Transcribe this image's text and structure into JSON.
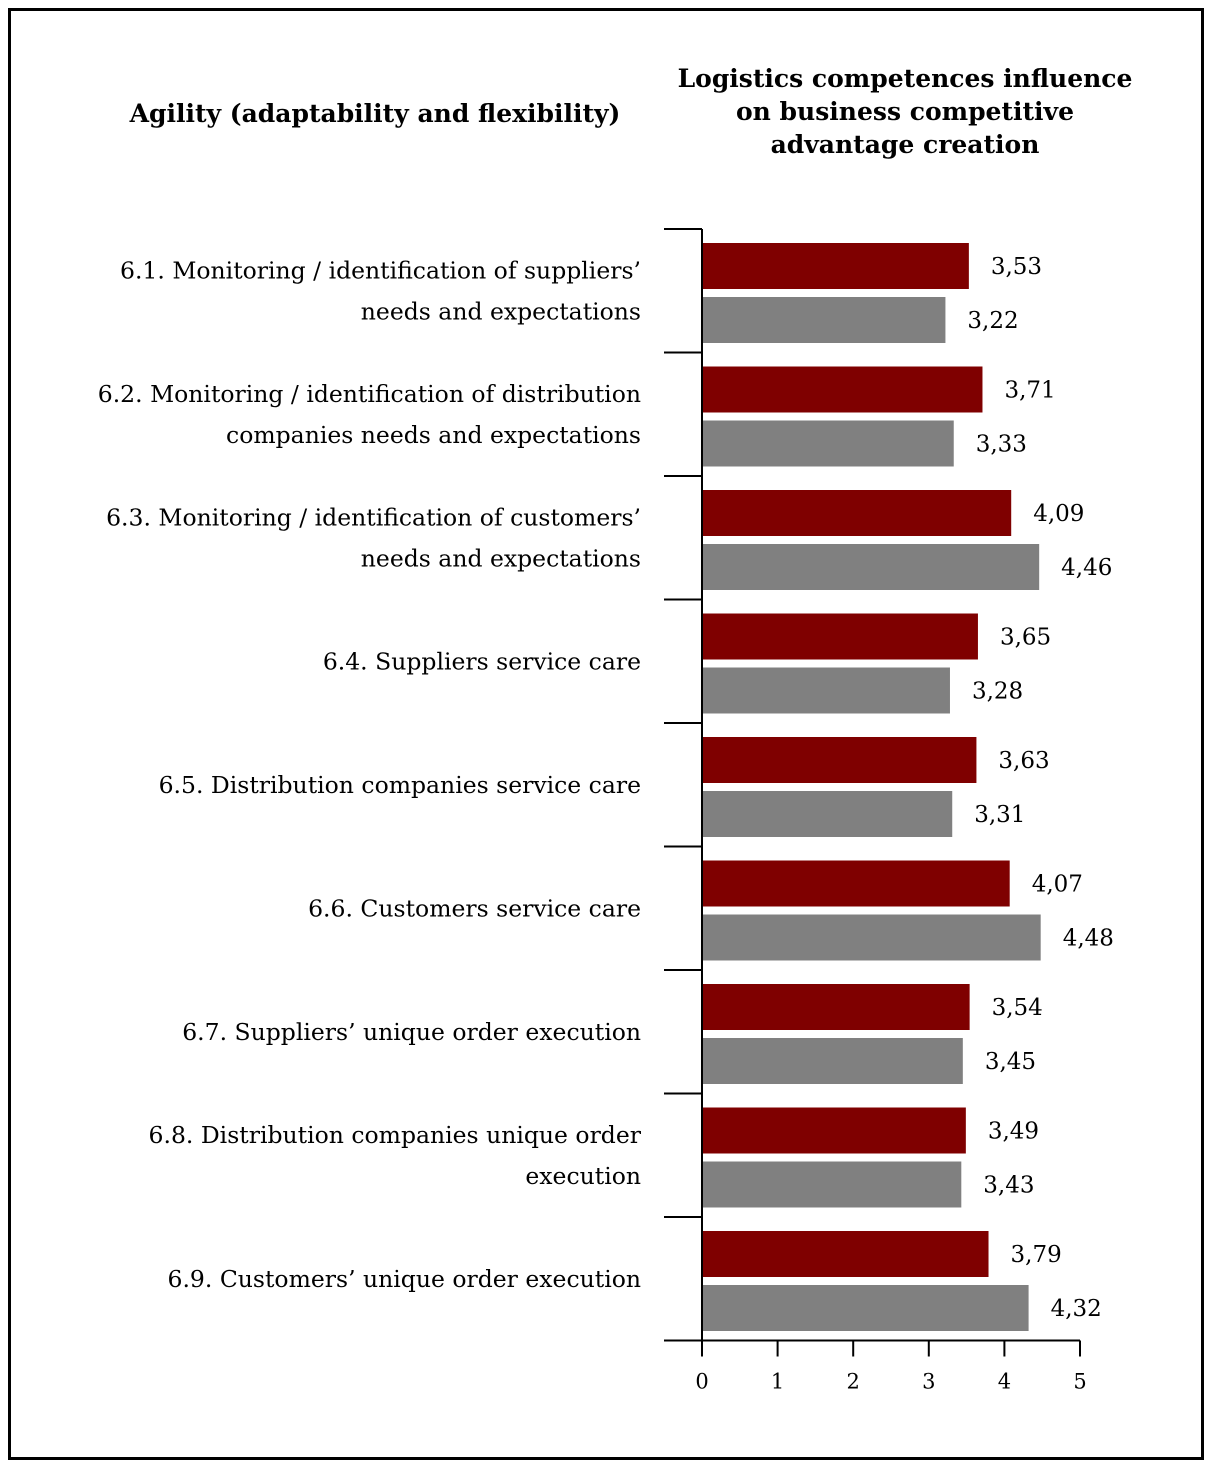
{
  "headings": {
    "left": "Agility (adaptability and flexibility)",
    "right": "Logistics competences influence on business competitive advantage creation"
  },
  "colors": {
    "series1": "#7f0000",
    "series2": "#808080"
  },
  "chart_data": {
    "type": "bar",
    "orientation": "horizontal",
    "categories": [
      [
        "6.1. Monitoring / identification of suppliers’",
        "needs and expectations"
      ],
      [
        "6.2. Monitoring / identification of distribution",
        "companies needs and expectations"
      ],
      [
        "6.3. Monitoring / identification of customers’",
        "needs and expectations"
      ],
      [
        "6.4. Suppliers service care"
      ],
      [
        "6.5. Distribution companies service care"
      ],
      [
        "6.6. Customers service care"
      ],
      [
        "6.7. Suppliers’ unique order execution"
      ],
      [
        "6.8. Distribution companies unique order",
        "execution"
      ],
      [
        "6.9. Customers’ unique order execution"
      ]
    ],
    "series": [
      {
        "values": [
          3.53,
          3.71,
          4.09,
          3.65,
          3.63,
          4.07,
          3.54,
          3.49,
          3.79
        ],
        "labels": [
          "3,53",
          "3,71",
          "4,09",
          "3,65",
          "3,63",
          "4,07",
          "3,54",
          "3,49",
          "3,79"
        ]
      },
      {
        "values": [
          3.22,
          3.33,
          4.46,
          3.28,
          3.31,
          4.48,
          3.45,
          3.43,
          4.32
        ],
        "labels": [
          "3,22",
          "3,33",
          "4,46",
          "3,28",
          "3,31",
          "4,48",
          "3,45",
          "3,43",
          "4,32"
        ]
      }
    ],
    "xlim": [
      0,
      5
    ],
    "xticks": [
      0,
      1,
      2,
      3,
      4,
      5
    ],
    "xtick_labels": [
      "0",
      "1",
      "2",
      "3",
      "4",
      "5"
    ],
    "grid": false,
    "legend": "none"
  }
}
